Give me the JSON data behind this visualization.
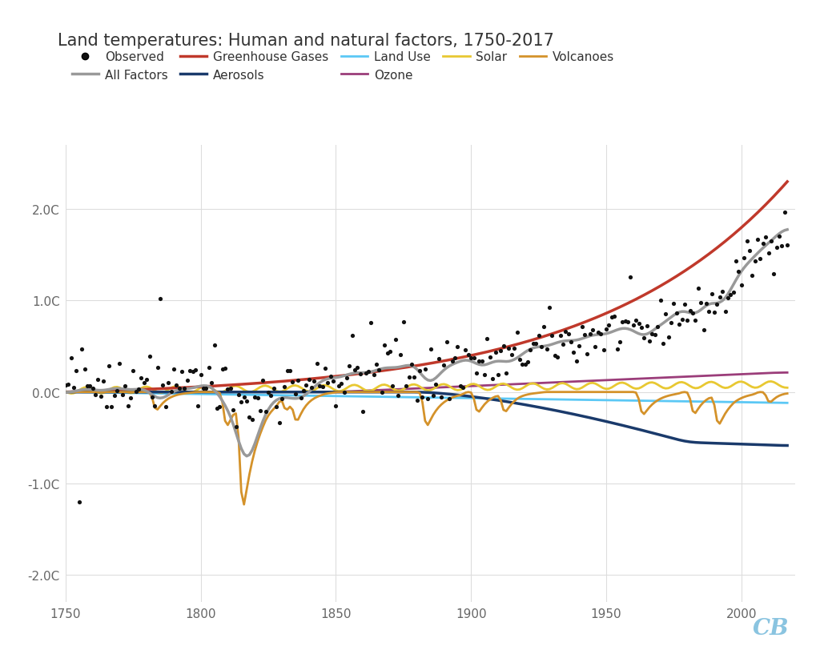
{
  "title": "Land temperatures: Human and natural factors, 1750-2017",
  "title_fontsize": 15,
  "title_color": "#333333",
  "background_color": "#ffffff",
  "xlim": [
    1750,
    2020
  ],
  "ylim": [
    -2.3,
    2.7
  ],
  "yticks": [
    -2.0,
    -1.0,
    0.0,
    1.0,
    2.0
  ],
  "ytick_labels": [
    "-2.0C",
    "-1.0C",
    "0.0C",
    "1.0C",
    "2.0C"
  ],
  "xticks": [
    1750,
    1800,
    1850,
    1900,
    1950,
    2000
  ],
  "grid_color": "#dddddd",
  "colors": {
    "observed": "#111111",
    "all_factors": "#999999",
    "ghg": "#c0392b",
    "aerosols": "#1a3a6b",
    "land_use": "#5bc8f5",
    "ozone": "#9b3d7a",
    "solar": "#e8c832",
    "volcanoes": "#d4922a"
  }
}
